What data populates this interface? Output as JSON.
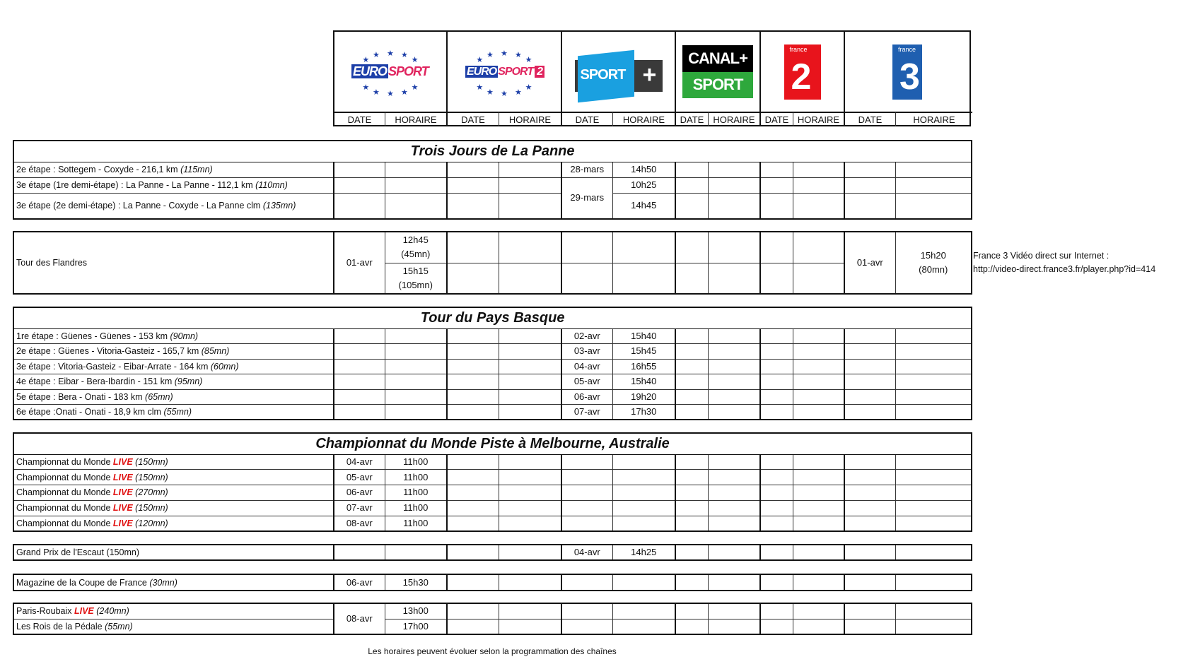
{
  "colors": {
    "live": "#e01010",
    "eurosport_blue": "#1d3fa8",
    "eurosport_pink": "#e0245e",
    "sportplus_blue": "#1aa0e0",
    "canal_green": "#2ea83c",
    "france2_red": "#e8141c",
    "france3_blue": "#1f5fb0"
  },
  "channels": [
    {
      "name": "Eurosport",
      "logo_text": [
        "EURO",
        "SPORT"
      ],
      "date": "DATE",
      "horaire": "HORAIRE"
    },
    {
      "name": "Eurosport 2",
      "logo_text": [
        "EURO",
        "SPORT",
        "2"
      ],
      "date": "DATE",
      "horaire": "HORAIRE"
    },
    {
      "name": "Sport+",
      "logo_text": [
        "SPORT",
        "+"
      ],
      "date": "DATE",
      "horaire": "HORAIRE"
    },
    {
      "name": "Canal+ Sport",
      "logo_text": [
        "CANAL+",
        "SPORT"
      ],
      "date": "DATE",
      "horaire": "HORAIRE"
    },
    {
      "name": "France 2",
      "logo_text": [
        "france",
        "2"
      ],
      "date": "DATE",
      "horaire": "HORAIRE"
    },
    {
      "name": "France 3",
      "logo_text": [
        "france",
        "3"
      ],
      "date": "DATE",
      "horaire": "HORAIRE"
    }
  ],
  "live_label": "LIVE",
  "sections": [
    {
      "title": "Trois Jours de La Panne",
      "rows": [
        {
          "label": {
            "text": "2e étape : Sottegem - Coxyde - 216,1 km ",
            "duration": "(115mn)",
            "italic": true
          },
          "cells": [
            "",
            "",
            "",
            "",
            "28-mars",
            "14h50",
            "",
            "",
            "",
            "",
            "",
            ""
          ]
        },
        {
          "label": {
            "text": "3e étape (1re demi-étape) : La Panne - La Panne - 112,1 km ",
            "duration": "(110mn)",
            "italic": true
          },
          "cells": [
            "",
            "",
            "",
            "",
            "29-mars",
            "10h25",
            "",
            "",
            "",
            "",
            "",
            ""
          ]
        },
        {
          "label": {
            "text": "3e étape (2e demi-étape) : La Panne - Coxyde - La Panne clm ",
            "duration": "(135mn)",
            "italic": true
          },
          "cells": [
            "",
            "",
            "",
            "",
            null,
            "14h45",
            "",
            "",
            "",
            "",
            "",
            ""
          ]
        }
      ]
    },
    {
      "title": "",
      "rows": [
        {
          "label": {
            "text": "Tour des Flandres",
            "duration": "",
            "italic": false
          },
          "cells": [
            "01-avr",
            "12h45\n(45mn)",
            "",
            "",
            "",
            "",
            "",
            "",
            "",
            "",
            "01-avr",
            "15h20\n(80mn)"
          ]
        },
        {
          "label": null,
          "cells": [
            null,
            "15h15\n(105mn)",
            "",
            "",
            "",
            "",
            "",
            "",
            "",
            "",
            null,
            null
          ]
        }
      ]
    },
    {
      "title": "Tour du Pays Basque",
      "rows": [
        {
          "label": {
            "text": "1re étape : Güenes - Güenes - 153 km ",
            "duration": "(90mn)",
            "italic": true
          },
          "cells": [
            "",
            "",
            "",
            "",
            "02-avr",
            "15h40",
            "",
            "",
            "",
            "",
            "",
            ""
          ]
        },
        {
          "label": {
            "text": "2e étape : Güenes - Vitoria-Gasteiz - 165,7 km ",
            "duration": "(85mn)",
            "italic": true
          },
          "cells": [
            "",
            "",
            "",
            "",
            "03-avr",
            "15h45",
            "",
            "",
            "",
            "",
            "",
            ""
          ]
        },
        {
          "label": {
            "text": " 3e étape : Vitoria-Gasteiz - Eibar-Arrate - 164 km ",
            "duration": "(60mn)",
            "italic": true
          },
          "cells": [
            "",
            "",
            "",
            "",
            "04-avr",
            "16h55",
            "",
            "",
            "",
            "",
            "",
            ""
          ]
        },
        {
          "label": {
            "text": "4e étape : Eibar - Bera-Ibardin - 151 km ",
            "duration": "(95mn)",
            "italic": true
          },
          "cells": [
            "",
            "",
            "",
            "",
            "05-avr",
            "15h40",
            "",
            "",
            "",
            "",
            "",
            ""
          ]
        },
        {
          "label": {
            "text": "5e étape : Bera - Onati - 183 km ",
            "duration": "(65mn)",
            "italic": true
          },
          "cells": [
            "",
            "",
            "",
            "",
            "06-avr",
            "19h20",
            "",
            "",
            "",
            "",
            "",
            ""
          ]
        },
        {
          "label": {
            "text": "6e étape :Onati - Onati - 18,9 km clm ",
            "duration": "(55mn)",
            "italic": true
          },
          "cells": [
            "",
            "",
            "",
            "",
            "07-avr",
            "17h30",
            "",
            "",
            "",
            "",
            "",
            ""
          ]
        }
      ]
    },
    {
      "title": "Championnat du Monde Piste à Melbourne, Australie",
      "rows": [
        {
          "label": {
            "text": "Championnat du Monde ",
            "live": true,
            "duration": " (150mn)",
            "italic": true
          },
          "cells": [
            "04-avr",
            "11h00",
            "",
            "",
            "",
            "",
            "",
            "",
            "",
            "",
            "",
            ""
          ]
        },
        {
          "label": {
            "text": "Championnat du Monde ",
            "live": true,
            "duration": " (150mn)",
            "italic": true
          },
          "cells": [
            "05-avr",
            "11h00",
            "",
            "",
            "",
            "",
            "",
            "",
            "",
            "",
            "",
            ""
          ]
        },
        {
          "label": {
            "text": "Championnat du Monde ",
            "live": true,
            "duration": " (270mn)",
            "italic": true
          },
          "cells": [
            "06-avr",
            "11h00",
            "",
            "",
            "",
            "",
            "",
            "",
            "",
            "",
            "",
            ""
          ]
        },
        {
          "label": {
            "text": "Championnat du Monde ",
            "live": true,
            "duration": " (150mn)",
            "italic": true
          },
          "cells": [
            "07-avr",
            "11h00",
            "",
            "",
            "",
            "",
            "",
            "",
            "",
            "",
            "",
            ""
          ]
        },
        {
          "label": {
            "text": "Championnat du Monde  ",
            "live": true,
            "duration": " (120mn)",
            "italic": true
          },
          "cells": [
            "08-avr",
            "11h00",
            "",
            "",
            "",
            "",
            "",
            "",
            "",
            "",
            "",
            ""
          ]
        }
      ]
    },
    {
      "title": "",
      "rows": [
        {
          "label": {
            "text": "Grand Prix de l'Escaut (150mn)",
            "duration": "",
            "italic": false
          },
          "cells": [
            "",
            "",
            "",
            "",
            "04-avr",
            "14h25",
            "",
            "",
            "",
            "",
            "",
            ""
          ]
        }
      ]
    },
    {
      "title": "",
      "rows": [
        {
          "label": {
            "text": "Magazine de la Coupe de France ",
            "duration": "(30mn)",
            "italic": true
          },
          "cells": [
            "06-avr",
            "15h30",
            "",
            "",
            "",
            "",
            "",
            "",
            "",
            "",
            "",
            ""
          ]
        }
      ]
    },
    {
      "title": "",
      "rows": [
        {
          "label": {
            "text": "Paris-Roubaix ",
            "live": true,
            "duration": " (240mn)",
            "italic": true
          },
          "cells": [
            "08-avr",
            "13h00",
            "",
            "",
            "",
            "",
            "",
            "",
            "",
            "",
            "",
            ""
          ]
        },
        {
          "label": {
            "text": "Les Rois de la Pédale ",
            "duration": "(55mn)",
            "italic": true
          },
          "cells": [
            null,
            "17h00",
            "",
            "",
            "",
            "",
            "",
            "",
            "",
            "",
            "",
            ""
          ]
        }
      ]
    }
  ],
  "note": {
    "line1": "France 3 Vidéo direct sur Internet :",
    "line2": "http://video-direct.france3.fr/player.php?id=414"
  },
  "footer": "Les horaires peuvent évoluer selon la programmation des chaînes"
}
